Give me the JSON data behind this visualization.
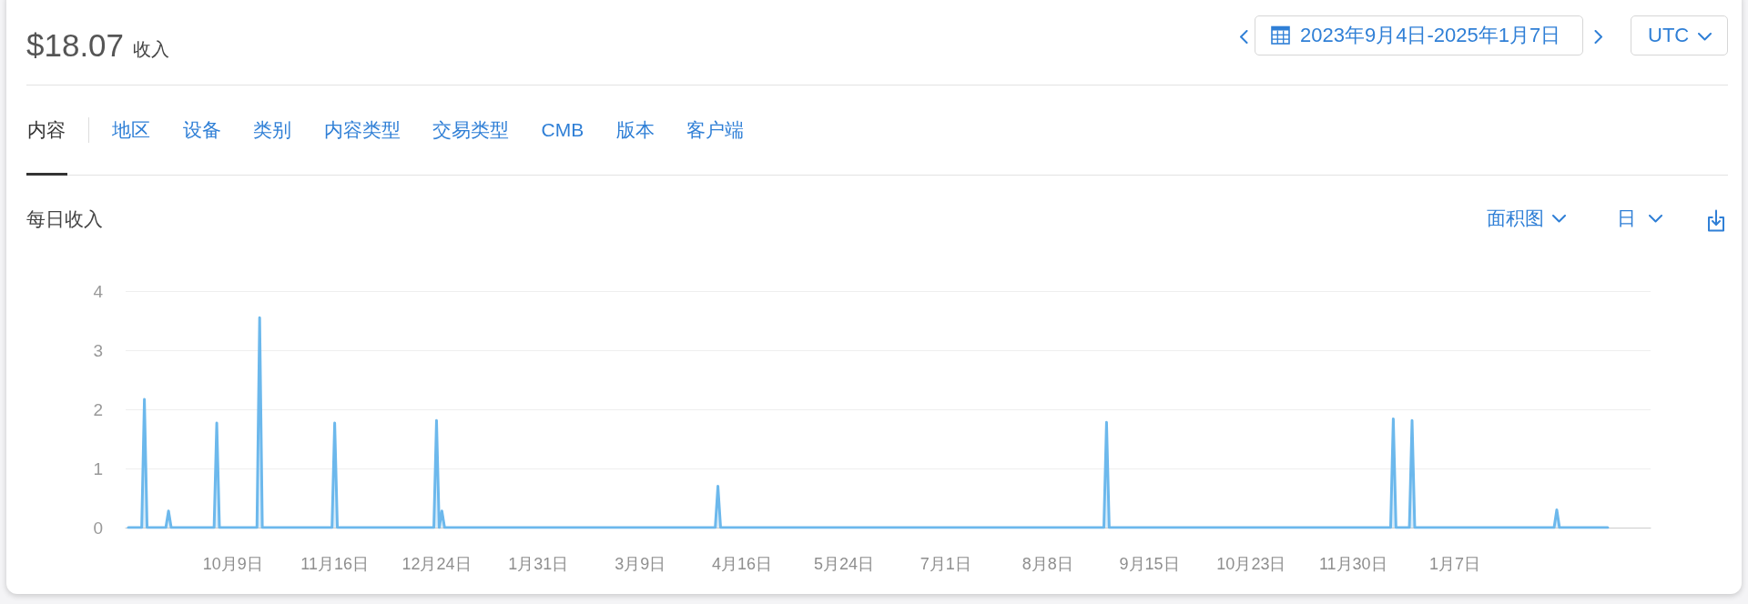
{
  "chart_data": {
    "type": "area",
    "title": "每日收入",
    "annotations": [
      "$18.07",
      "收入",
      "2023年9月4日-2025年1月7日",
      "UTC",
      "内容",
      "地区",
      "设备",
      "类别",
      "内容类型",
      "交易类型",
      "CMB",
      "版本",
      "客户端",
      "面积图",
      "日"
    ],
    "x": [
      "2023-08-31",
      "2023-09-05",
      "2023-09-06",
      "2023-09-07",
      "2023-09-14",
      "2023-09-15",
      "2023-09-16",
      "2023-10-02",
      "2023-10-03",
      "2023-10-04",
      "2023-10-18",
      "2023-10-19",
      "2023-10-20",
      "2023-11-15",
      "2023-11-16",
      "2023-11-17",
      "2023-12-23",
      "2023-12-24",
      "2023-12-25",
      "2023-12-26",
      "2023-12-27",
      "2024-04-06",
      "2024-04-07",
      "2024-04-08",
      "2024-08-29",
      "2024-08-30",
      "2024-08-31",
      "2024-12-14",
      "2024-12-15",
      "2024-12-16",
      "2024-12-21",
      "2024-12-22",
      "2024-12-23",
      "2025-02-13",
      "2025-02-14",
      "2025-02-15",
      "2025-03-05"
    ],
    "series": [
      {
        "color": "#6cb8ec",
        "values": [
          0,
          0,
          2.17,
          0,
          0,
          0.28,
          0,
          0,
          1.77,
          0,
          0,
          3.55,
          0,
          0,
          1.77,
          0,
          0,
          1.81,
          0,
          0.28,
          0,
          0,
          0.7,
          0,
          0,
          1.78,
          0,
          0,
          1.84,
          0,
          0,
          1.81,
          0,
          0,
          0.3,
          0,
          0
        ]
      }
    ],
    "xlim": [
      "2023-08-30",
      "2025-03-21"
    ],
    "xticks": [
      {
        "value": "2023-10-09",
        "label": "10月9日"
      },
      {
        "value": "2023-11-16",
        "label": "11月16日"
      },
      {
        "value": "2023-12-24",
        "label": "12月24日"
      },
      {
        "value": "2024-01-31",
        "label": "1月31日"
      },
      {
        "value": "2024-03-09",
        "label": "3月9日"
      },
      {
        "value": "2024-04-16",
        "label": "4月16日"
      },
      {
        "value": "2024-05-24",
        "label": "5月24日"
      },
      {
        "value": "2024-07-01",
        "label": "7月1日"
      },
      {
        "value": "2024-08-08",
        "label": "8月8日"
      },
      {
        "value": "2024-09-15",
        "label": "9月15日"
      },
      {
        "value": "2024-10-23",
        "label": "10月23日"
      },
      {
        "value": "2024-11-30",
        "label": "11月30日"
      },
      {
        "value": "2025-01-07",
        "label": "1月7日"
      }
    ],
    "ylim": [
      0,
      4
    ],
    "yticks": [
      0,
      1,
      2,
      3,
      4
    ],
    "grid": "y"
  }
}
